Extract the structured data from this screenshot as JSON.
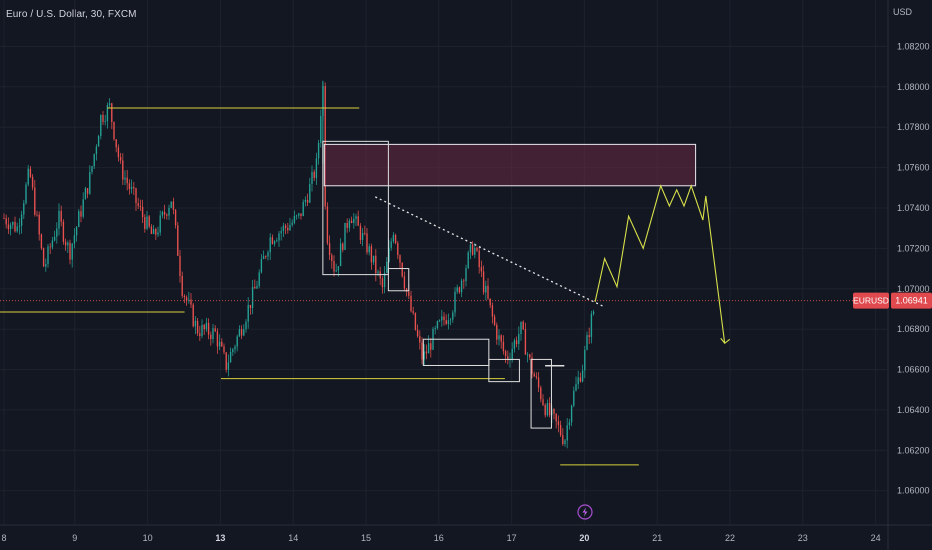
{
  "symbol_title": "Euro / U.S. Dollar, 30, FXCM",
  "chart_data": {
    "type": "candlestick",
    "currency": "USD",
    "y_ticks": [
      "1.08200",
      "1.08000",
      "1.07800",
      "1.07600",
      "1.07400",
      "1.07200",
      "1.07000",
      "1.06800",
      "1.06600",
      "1.06400",
      "1.06200",
      "1.06000"
    ],
    "ylim": [
      1.0583,
      1.0843
    ],
    "x_ticks": [
      {
        "label": "8",
        "bold": false
      },
      {
        "label": "9",
        "bold": false
      },
      {
        "label": "10",
        "bold": false
      },
      {
        "label": "13",
        "bold": true
      },
      {
        "label": "14",
        "bold": false
      },
      {
        "label": "15",
        "bold": false
      },
      {
        "label": "16",
        "bold": false
      },
      {
        "label": "17",
        "bold": false
      },
      {
        "label": "20",
        "bold": true
      },
      {
        "label": "21",
        "bold": false
      },
      {
        "label": "22",
        "bold": false
      },
      {
        "label": "23",
        "bold": false
      },
      {
        "label": "24",
        "bold": false
      }
    ],
    "price_label": {
      "symbol": "EURUSD",
      "value": "1.06941",
      "price": 1.06941
    },
    "key_points": [
      {
        "t": 0.0,
        "p": 1.0735
      },
      {
        "t": 0.18,
        "p": 1.073
      },
      {
        "t": 0.35,
        "p": 1.0758
      },
      {
        "t": 0.55,
        "p": 1.071
      },
      {
        "t": 0.75,
        "p": 1.0735
      },
      {
        "t": 0.9,
        "p": 1.0718
      },
      {
        "t": 1.18,
        "p": 1.0755
      },
      {
        "t": 1.33,
        "p": 1.0785
      },
      {
        "t": 1.45,
        "p": 1.079
      },
      {
        "t": 1.6,
        "p": 1.076
      },
      {
        "t": 1.85,
        "p": 1.074
      },
      {
        "t": 2.05,
        "p": 1.0725
      },
      {
        "t": 2.3,
        "p": 1.0745
      },
      {
        "t": 2.45,
        "p": 1.07
      },
      {
        "t": 2.65,
        "p": 1.068
      },
      {
        "t": 2.9,
        "p": 1.0678
      },
      {
        "t": 3.05,
        "p": 1.0662
      },
      {
        "t": 3.25,
        "p": 1.068
      },
      {
        "t": 3.45,
        "p": 1.07
      },
      {
        "t": 3.65,
        "p": 1.0725
      },
      {
        "t": 3.85,
        "p": 1.073
      },
      {
        "t": 4.05,
        "p": 1.0735
      },
      {
        "t": 4.2,
        "p": 1.075
      },
      {
        "t": 4.3,
        "p": 1.0762
      },
      {
        "t": 4.38,
        "p": 1.0803
      },
      {
        "t": 4.42,
        "p": 1.073
      },
      {
        "t": 4.55,
        "p": 1.0708
      },
      {
        "t": 4.75,
        "p": 1.0738
      },
      {
        "t": 5.0,
        "p": 1.072
      },
      {
        "t": 5.2,
        "p": 1.07
      },
      {
        "t": 5.35,
        "p": 1.073
      },
      {
        "t": 5.55,
        "p": 1.0695
      },
      {
        "t": 5.75,
        "p": 1.0665
      },
      {
        "t": 5.95,
        "p": 1.068
      },
      {
        "t": 6.15,
        "p": 1.069
      },
      {
        "t": 6.35,
        "p": 1.0712
      },
      {
        "t": 6.45,
        "p": 1.0722
      },
      {
        "t": 6.6,
        "p": 1.07
      },
      {
        "t": 6.75,
        "p": 1.068
      },
      {
        "t": 6.9,
        "p": 1.0665
      },
      {
        "t": 7.1,
        "p": 1.068
      },
      {
        "t": 7.25,
        "p": 1.066
      },
      {
        "t": 7.45,
        "p": 1.064
      },
      {
        "t": 7.6,
        "p": 1.0632
      },
      {
        "t": 7.7,
        "p": 1.0625
      },
      {
        "t": 7.8,
        "p": 1.0645
      },
      {
        "t": 7.95,
        "p": 1.0662
      },
      {
        "t": 8.05,
        "p": 1.0682
      },
      {
        "t": 8.12,
        "p": 1.0692
      }
    ],
    "annotations": {
      "supply_zone": {
        "t1": 4.4,
        "t2": 9.5,
        "p_top": 1.07715,
        "p_bottom": 1.0751
      },
      "top_line": {
        "t1": 1.42,
        "t2": 4.88,
        "p": 1.07895
      },
      "left_line": {
        "t1": -0.1,
        "t2": 2.48,
        "p": 1.06885
      },
      "bottom_line": {
        "t1": 2.98,
        "t2": 6.88,
        "p": 1.06555
      },
      "lowest_line": {
        "t1": 7.64,
        "t2": 8.72,
        "p": 1.06128
      },
      "trendline": {
        "t1": 5.1,
        "p1": 1.07455,
        "t2": 8.25,
        "p2": 1.0691
      },
      "boxes": [
        {
          "t1": 4.38,
          "t2": 5.28,
          "p_top": 1.0773,
          "p_bottom": 1.0707
        },
        {
          "t1": 5.28,
          "t2": 5.56,
          "p_top": 1.071,
          "p_bottom": 1.0699
        },
        {
          "t1": 5.76,
          "t2": 6.66,
          "p_top": 1.0675,
          "p_bottom": 1.0662
        },
        {
          "t1": 6.66,
          "t2": 7.08,
          "p_top": 1.0665,
          "p_bottom": 1.0654
        },
        {
          "t1": 7.24,
          "t2": 7.52,
          "p_top": 1.0665,
          "p_bottom": 1.0631
        },
        {
          "t1": 7.44,
          "t2": 7.69,
          "p_top": 1.0662,
          "p_bottom": 1.0662
        }
      ],
      "projection": [
        {
          "t": 8.12,
          "p": 1.06935
        },
        {
          "t": 8.25,
          "p": 1.0715
        },
        {
          "t": 8.42,
          "p": 1.0701
        },
        {
          "t": 8.58,
          "p": 1.0736
        },
        {
          "t": 8.78,
          "p": 1.072
        },
        {
          "t": 9.02,
          "p": 1.0751
        },
        {
          "t": 9.14,
          "p": 1.0741
        },
        {
          "t": 9.24,
          "p": 1.0749
        },
        {
          "t": 9.34,
          "p": 1.0741
        },
        {
          "t": 9.44,
          "p": 1.0751
        },
        {
          "t": 9.6,
          "p": 1.0734
        },
        {
          "t": 9.64,
          "p": 1.0746
        },
        {
          "t": 9.9,
          "p": 1.0673
        }
      ]
    }
  }
}
